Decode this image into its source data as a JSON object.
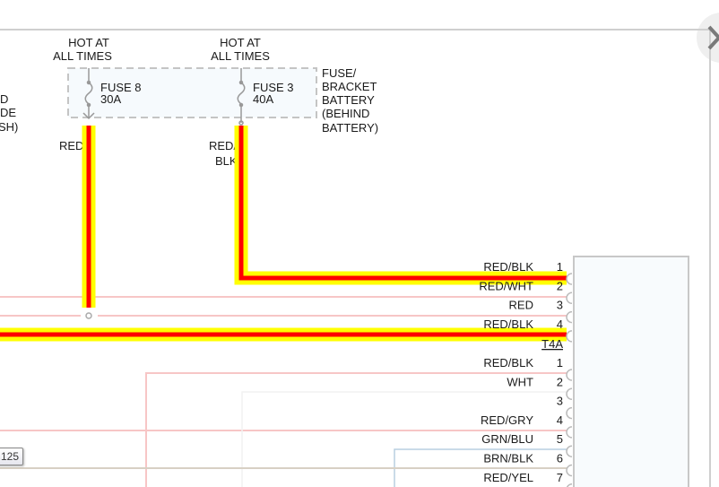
{
  "colors": {
    "wire_highlight": "#ffff00",
    "wire_red": "#ff0000",
    "wire_thin_red": "#f7c6c6",
    "frame": "#cccccc"
  },
  "left_partial_label": [
    "D",
    "DE",
    "SH)"
  ],
  "fuses": [
    {
      "hot_label_1": "HOT AT",
      "hot_label_2": "ALL TIMES",
      "name": "FUSE 8",
      "rating": "30A",
      "wire_color": "RED"
    },
    {
      "hot_label_1": "HOT AT",
      "hot_label_2": "ALL TIMES",
      "name": "FUSE 3",
      "rating": "40A",
      "wire_color_1": "RED/",
      "wire_color_2": "BLK"
    }
  ],
  "fuse_block_label": [
    "FUSE/",
    "BRACKET",
    "BATTERY",
    "(BEHIND",
    "BATTERY)"
  ],
  "connector_top": {
    "name": "T4A",
    "pins": [
      {
        "pin": "1",
        "wire": "RED/BLK"
      },
      {
        "pin": "2",
        "wire": "RED/WHT"
      },
      {
        "pin": "3",
        "wire": "RED"
      },
      {
        "pin": "4",
        "wire": "RED/BLK"
      }
    ]
  },
  "connector_bottom": {
    "pins": [
      {
        "pin": "1",
        "wire": "RED/BLK"
      },
      {
        "pin": "2",
        "wire": "WHT"
      },
      {
        "pin": "3",
        "wire": ""
      },
      {
        "pin": "4",
        "wire": "RED/GRY"
      },
      {
        "pin": "5",
        "wire": "GRN/BLU"
      },
      {
        "pin": "6",
        "wire": "BRN/BLK"
      },
      {
        "pin": "7",
        "wire": "RED/YEL"
      }
    ]
  },
  "tooltip": "125",
  "nav_icon": "chevron-right-icon"
}
